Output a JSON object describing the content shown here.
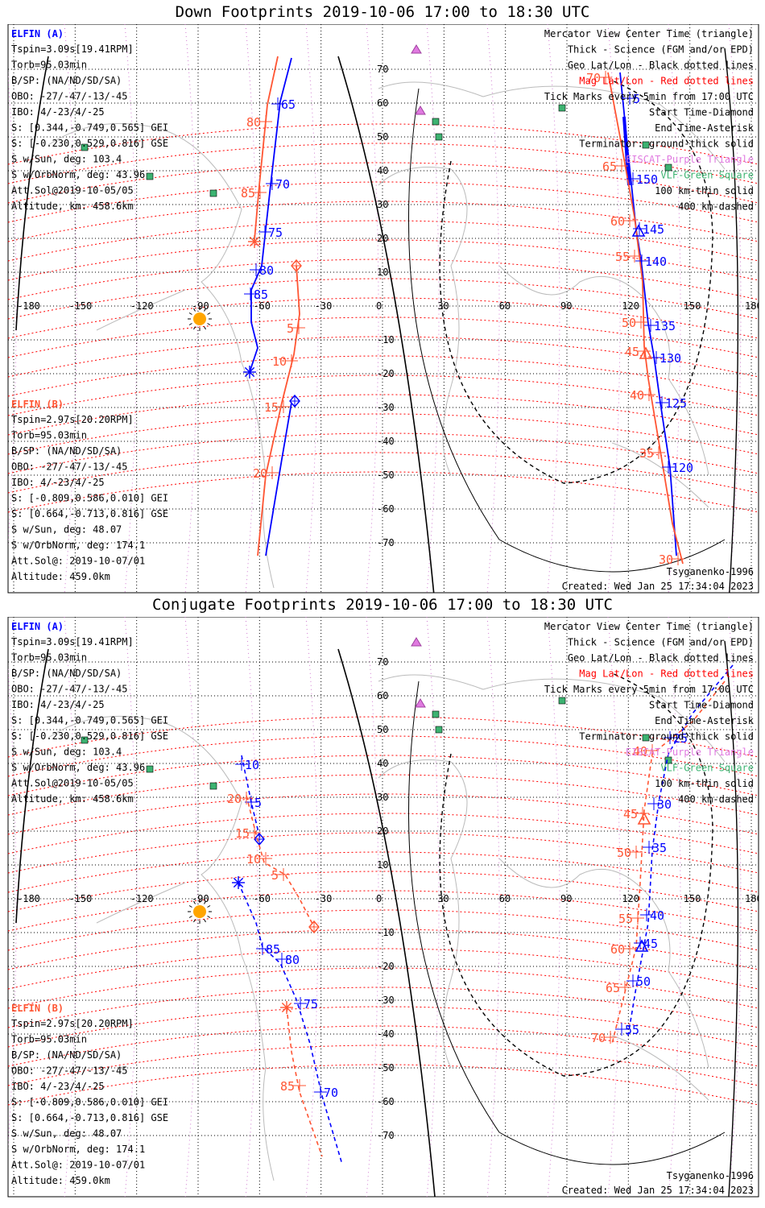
{
  "panels": [
    {
      "title": "Down Footprints 2019-10-06 17:00 to 18:30 UTC",
      "elfin_a": {
        "label": "ELFIN (A)",
        "lines": [
          "Tspin=3.09s[19.41RPM]",
          "Torb=95.03min",
          "B/SP: (NA/ND/SD/SA)",
          "OBO: -27/-47/-13/-45",
          "IBO: 4/-23/4/-25",
          "S: [0.344,-0.749,0.565] GEI",
          "S: [-0.230,0.529,0.816] GSE",
          "S w/Sun, deg: 103.4",
          "S w/OrbNorm, deg: 43.96",
          "Att.Sol@2019-10-05/05",
          "Altitude, km: 458.6km"
        ]
      },
      "elfin_b": {
        "label": "ELFIN (B)",
        "lines": [
          "Tspin=2.97s[20.20RPM]",
          "Torb=95.03min",
          "B/SP: (NA/ND/SD/SA)",
          "OBO: -27/-47/-13/-45",
          "IBO: 4/-23/4/-25",
          "S: [-0.809,0.586,0.010] GEI",
          "S: [0.664,-0.713,0.816] GSE",
          "S w/Sun, deg: 48.07",
          "S w/OrbNorm, deg: 174.1",
          "Att.Sol@: 2019-10-07/01",
          "Altitude: 459.0km"
        ]
      },
      "legend": [
        {
          "text": "Mercator View Center Time (triangle)",
          "color": "#000000"
        },
        {
          "text": "Thick - Science (FGM and/or EPD)",
          "color": "#000000"
        },
        {
          "text": "Geo Lat/Lon - Black dotted lines",
          "color": "#000000"
        },
        {
          "text": "Mag Lat/Lon - Red dotted lines",
          "color": "#ff0000"
        },
        {
          "text": "Tick Marks every 5min from 17:00 UTC",
          "color": "#000000"
        },
        {
          "text": "Start Time-Diamond",
          "color": "#000000"
        },
        {
          "text": "End Time-Asterisk",
          "color": "#000000"
        },
        {
          "text": "Terminator: ground-thick solid",
          "color": "#000000"
        },
        {
          "text": "EISCAT-Purple Triangle",
          "color": "#e07ae0"
        },
        {
          "text": "VLF-Green Square",
          "color": "#3cb371"
        },
        {
          "text": "100 km-thin solid",
          "color": "#000000"
        },
        {
          "text": "400 km-dashed",
          "color": "#000000"
        }
      ],
      "model": "Tsyganenko-1996",
      "created": "Created: Wed Jan 25 17:34:04 2023",
      "lon_labels": [
        "-180",
        "-150",
        "-120",
        "-90",
        "-60",
        "-30",
        "0",
        "30",
        "60",
        "90",
        "120",
        "150",
        "180"
      ],
      "lat_labels": [
        "70",
        "60",
        "50",
        "40",
        "30",
        "20",
        "10",
        "0",
        "-10",
        "-20",
        "-30",
        "-40",
        "-50",
        "-60",
        "-70"
      ],
      "track_a_left": {
        "labels": [
          "65",
          "70",
          "75",
          "80",
          "85"
        ]
      },
      "track_b_left": {
        "labels": [
          "80",
          "85",
          "5",
          "10",
          "15",
          "20"
        ]
      },
      "track_a_right": {
        "labels": [
          "5",
          "150",
          "145",
          "140",
          "135",
          "130",
          "125",
          "120"
        ]
      },
      "track_b_right": {
        "labels": [
          "70",
          "65",
          "60",
          "55",
          "50",
          "45",
          "40",
          "35",
          "30"
        ]
      }
    },
    {
      "title": "Conjugate Footprints 2019-10-06 17:00 to 18:30 UTC",
      "model": "Tsyganenko-1996",
      "created": "Created: Wed Jan 25 17:34:04 2023",
      "track_a_left": {
        "labels": [
          "10",
          "5",
          "85",
          "80",
          "75",
          "70"
        ]
      },
      "track_b_left": {
        "labels": [
          "20",
          "15",
          "10",
          "5",
          "85"
        ]
      },
      "track_a_right": {
        "labels": [
          "25",
          "30",
          "35",
          "40",
          "45",
          "50",
          "55"
        ]
      },
      "track_b_right": {
        "labels": [
          "40",
          "45",
          "50",
          "55",
          "60",
          "65",
          "70"
        ]
      }
    }
  ],
  "colors": {
    "elfin_a": "#0000ff",
    "elfin_b": "#ff5533",
    "mag_grid": "#ff0000",
    "geo_grid": "#000000",
    "eiscat": "#e07ae0",
    "vlf": "#3cb371",
    "sun": "#ffa500"
  }
}
